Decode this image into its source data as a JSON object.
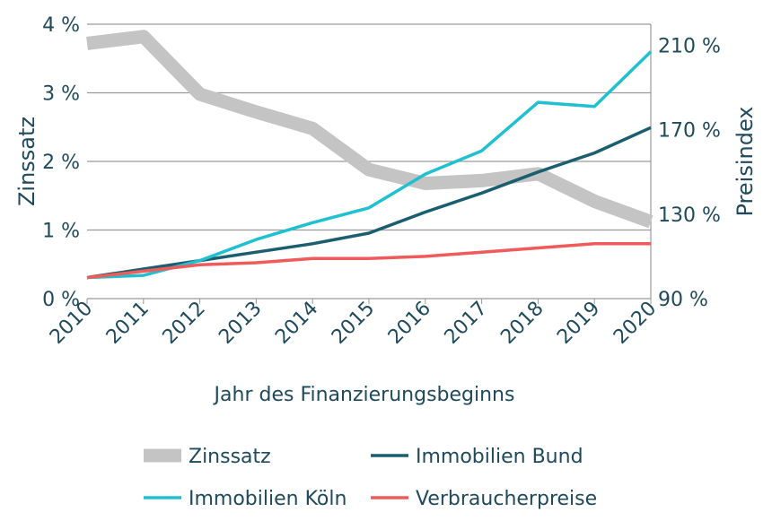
{
  "chart_data": {
    "type": "line",
    "x": [
      "2010",
      "2011",
      "2012",
      "2013",
      "2014",
      "2015",
      "2016",
      "2017",
      "2018",
      "2019",
      "2020"
    ],
    "xlabel": "Jahr des Finanzierungsbeginns",
    "ylabel_left": "Zinssatz",
    "ylabel_right": "Preisindex",
    "y_left_lim": [
      0,
      4
    ],
    "y_right_lim": [
      90,
      220
    ],
    "y_left_ticks": [
      0,
      1,
      2,
      3,
      4
    ],
    "y_left_tick_labels": [
      "0 %",
      "1 %",
      "2 %",
      "3 %",
      "4 %"
    ],
    "y_right_ticks": [
      90,
      130,
      170,
      210
    ],
    "y_right_tick_labels": [
      "90 %",
      "130 %",
      "170 %",
      "210 %"
    ],
    "grid": "horizontal",
    "legend_position": "bottom",
    "series": [
      {
        "name": "Zinssatz",
        "axis": "left",
        "color": "#c4c4c4",
        "values": [
          3.72,
          3.82,
          2.98,
          2.72,
          2.48,
          1.88,
          1.68,
          1.72,
          1.82,
          1.42,
          1.12
        ]
      },
      {
        "name": "Immobilien Bund",
        "axis": "right",
        "color": "#1b5e6f",
        "values": [
          100,
          104,
          108,
          112,
          116,
          121,
          131,
          140,
          150,
          159,
          171
        ]
      },
      {
        "name": "Immobilien Köln",
        "axis": "right",
        "color": "#1fc1d0",
        "values": [
          100,
          101,
          108,
          118,
          126,
          133,
          149,
          160,
          183,
          181,
          207
        ]
      },
      {
        "name": "Verbraucherpreise",
        "axis": "right",
        "color": "#f05a5a",
        "values": [
          100,
          103,
          106,
          107,
          109,
          109,
          110,
          112,
          114,
          116,
          116
        ]
      }
    ]
  }
}
